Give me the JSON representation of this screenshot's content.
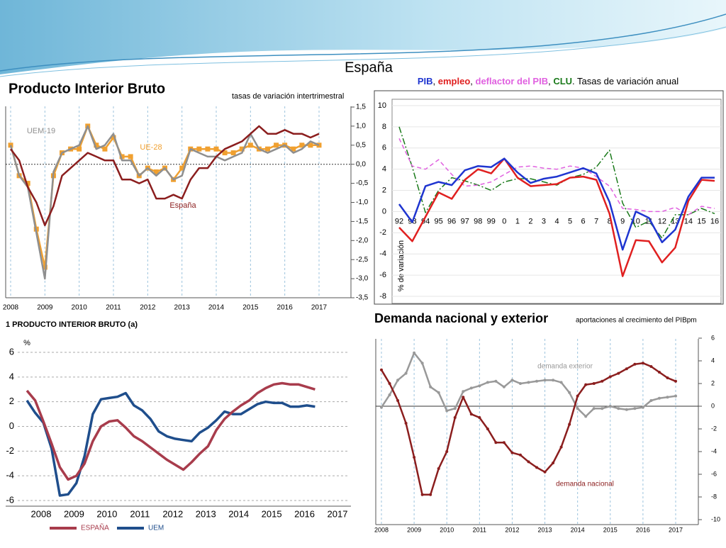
{
  "title": "España",
  "chart_data": [
    {
      "type": "line",
      "title": "Producto Interior Bruto",
      "subtitle": "tasas de variación intertrimestral",
      "categories": [
        "2008",
        null,
        null,
        null,
        "2009",
        null,
        null,
        null,
        "2010",
        null,
        null,
        null,
        "2011",
        null,
        null,
        null,
        "2012",
        null,
        null,
        null,
        "2013",
        null,
        null,
        null,
        "2014",
        null,
        null,
        null,
        "2015",
        null,
        null,
        null,
        "2016",
        null,
        null,
        null,
        "2017"
      ],
      "series": [
        {
          "name": "España",
          "color": "#8b1e1e",
          "values": [
            0.4,
            0.1,
            -0.6,
            -1.0,
            -1.6,
            -1.1,
            -0.3,
            -0.1,
            0.1,
            0.3,
            0.2,
            0.1,
            0.1,
            -0.4,
            -0.4,
            -0.5,
            -0.4,
            -0.9,
            -0.9,
            -0.8,
            -0.9,
            -0.4,
            -0.1,
            -0.1,
            0.2,
            0.4,
            0.5,
            0.6,
            0.8,
            1.0,
            0.8,
            0.8,
            0.9,
            0.8,
            0.8,
            0.7,
            0.8
          ]
        },
        {
          "name": "UEM-19",
          "color": "#8f8f8f",
          "values": [
            0.5,
            -0.3,
            -0.6,
            -1.8,
            -3.0,
            -0.2,
            0.3,
            0.4,
            0.5,
            1.0,
            0.4,
            0.5,
            0.8,
            0.1,
            0.1,
            -0.3,
            -0.1,
            -0.3,
            -0.1,
            -0.4,
            -0.3,
            0.4,
            0.3,
            0.2,
            0.2,
            0.1,
            0.2,
            0.3,
            0.8,
            0.4,
            0.3,
            0.4,
            0.5,
            0.3,
            0.4,
            0.6,
            0.5
          ]
        },
        {
          "name": "UE-28",
          "color": "#f0a030",
          "marker": "square",
          "values": [
            0.5,
            -0.3,
            -0.5,
            -1.7,
            -2.7,
            -0.3,
            0.3,
            0.4,
            0.4,
            1.0,
            0.5,
            0.4,
            0.7,
            0.2,
            0.2,
            -0.3,
            -0.1,
            -0.2,
            -0.1,
            -0.4,
            -0.1,
            0.4,
            0.4,
            0.4,
            0.4,
            0.3,
            0.3,
            0.4,
            0.5,
            0.4,
            0.4,
            0.5,
            0.5,
            0.4,
            0.5,
            0.5,
            0.5
          ]
        }
      ],
      "ylim": [
        -3.5,
        1.5
      ],
      "yticks": [
        {
          "value": 1.5,
          "label": "1,5"
        },
        {
          "value": 1.0,
          "label": "1,0"
        },
        {
          "value": 0.5,
          "label": "0,5"
        },
        {
          "value": 0,
          "label": "0,0"
        },
        {
          "value": -0.5,
          "label": "-0,5"
        },
        {
          "value": -1.0,
          "label": "-1,0"
        },
        {
          "value": -1.5,
          "label": "-1,5"
        },
        {
          "value": -2.0,
          "label": "-2,0"
        },
        {
          "value": -2.5,
          "label": "-2,5"
        },
        {
          "value": -3.0,
          "label": "-3,0"
        },
        {
          "value": -3.5,
          "label": "-3,5"
        }
      ],
      "grid": false
    },
    {
      "type": "line",
      "title_separators": [
        ", ",
        ", ",
        ", ",
        ". Tasas de variación anual"
      ],
      "y_label": "% de variación",
      "categories": [
        "92",
        "93",
        "94",
        "95",
        "96",
        "97",
        "98",
        "99",
        "0",
        "1",
        "2",
        "3",
        "4",
        "5",
        "6",
        "7",
        "8",
        "9",
        "10",
        "11",
        "12",
        "13",
        "14",
        "15",
        "16"
      ],
      "series": [
        {
          "name": "PIB",
          "color": "#1f35d0",
          "values": [
            0.7,
            -1.0,
            2.4,
            2.8,
            2.5,
            3.9,
            4.3,
            4.2,
            5.0,
            3.7,
            2.7,
            3.1,
            3.3,
            3.7,
            4.1,
            3.6,
            0.9,
            -3.6,
            0.0,
            -0.6,
            -2.9,
            -1.7,
            1.4,
            3.2,
            3.2
          ]
        },
        {
          "name": "empleo",
          "color": "#e02020",
          "values": [
            -1.5,
            -2.8,
            -0.5,
            1.8,
            1.2,
            3.0,
            4.0,
            3.6,
            5.0,
            3.2,
            2.4,
            2.5,
            2.6,
            3.2,
            3.3,
            3.0,
            -0.2,
            -6.1,
            -2.7,
            -2.8,
            -4.8,
            -3.4,
            1.0,
            3.0,
            2.9
          ]
        },
        {
          "name": "deflactor del PIB",
          "color": "#e060e0",
          "dash": "dashed",
          "values": [
            6.9,
            4.3,
            4.0,
            4.9,
            3.5,
            2.4,
            2.5,
            2.8,
            3.5,
            4.2,
            4.3,
            4.1,
            4.0,
            4.3,
            4.1,
            3.3,
            2.4,
            0.3,
            0.2,
            0.0,
            0.0,
            0.4,
            -0.3,
            0.5,
            0.3
          ]
        },
        {
          "name": "CLU",
          "color": "#1a7a1a",
          "dash": "dashdot",
          "values": [
            8.0,
            4.2,
            -0.1,
            2.0,
            3.2,
            2.9,
            2.5,
            2.0,
            2.8,
            3.1,
            3.1,
            2.8,
            2.5,
            3.2,
            3.5,
            4.2,
            5.8,
            0.8,
            -1.5,
            -0.9,
            -2.5,
            -0.3,
            -0.3,
            0.3,
            -0.2
          ]
        }
      ],
      "ylim": [
        -8,
        10
      ],
      "yticks": [
        -8,
        -6,
        -4,
        -2,
        0,
        2,
        4,
        6,
        8,
        10
      ],
      "grid": true
    },
    {
      "type": "line",
      "title": "1 PRODUCTO INTERIOR BRUTO (a)",
      "y_label": "%",
      "categories": [
        "2008",
        null,
        null,
        null,
        "2009",
        null,
        null,
        null,
        "2010",
        null,
        null,
        null,
        "2011",
        null,
        null,
        null,
        "2012",
        null,
        null,
        null,
        "2013",
        null,
        null,
        null,
        "2014",
        null,
        null,
        null,
        "2015",
        null,
        null,
        null,
        "2016",
        null,
        null,
        null,
        "2017"
      ],
      "series": [
        {
          "name": "ESPAÑA",
          "color": "#a83c4c",
          "values": [
            2.9,
            2.1,
            0.4,
            -1.4,
            -3.3,
            -4.3,
            -4.0,
            -3.0,
            -1.2,
            0.0,
            0.4,
            0.5,
            -0.1,
            -0.8,
            -1.2,
            -1.7,
            -2.2,
            -2.7,
            -3.1,
            -3.5,
            -2.9,
            -2.2,
            -1.6,
            -0.3,
            0.6,
            1.2,
            1.7,
            2.1,
            2.7,
            3.1,
            3.4,
            3.5,
            3.4,
            3.4,
            3.2,
            3.0,
            null
          ]
        },
        {
          "name": "UEM",
          "color": "#1f4e8c",
          "values": [
            2.1,
            1.1,
            0.3,
            -1.8,
            -5.6,
            -5.5,
            -4.6,
            -2.4,
            1.0,
            2.2,
            2.3,
            2.4,
            2.7,
            1.7,
            1.3,
            0.6,
            -0.4,
            -0.8,
            -1.0,
            -1.1,
            -1.2,
            -0.5,
            -0.1,
            0.5,
            1.2,
            1.0,
            1.0,
            1.4,
            1.8,
            2.0,
            1.9,
            1.9,
            1.6,
            1.6,
            1.7,
            1.6,
            null
          ]
        }
      ],
      "ylim": [
        -6,
        6
      ],
      "yticks": [
        -6,
        -4,
        -2,
        0,
        2,
        4,
        6
      ],
      "grid": true,
      "legend": "bottom"
    },
    {
      "type": "line",
      "title": "Demanda nacional y exterior",
      "subtitle": "aportaciones al crecimiento del PIBpm",
      "categories": [
        "2008",
        null,
        null,
        null,
        "2009",
        null,
        null,
        null,
        "2010",
        null,
        null,
        null,
        "2011",
        null,
        null,
        null,
        "2012",
        null,
        null,
        null,
        "2013",
        null,
        null,
        null,
        "2014",
        null,
        null,
        null,
        "2015",
        null,
        null,
        null,
        "2016",
        null,
        null,
        null,
        "2017"
      ],
      "series": [
        {
          "name": "demanda nacional",
          "color": "#8b1e1e",
          "marker": "circle",
          "values": [
            3.2,
            2.0,
            0.5,
            -1.5,
            -4.5,
            -7.8,
            -7.8,
            -5.5,
            -4.0,
            -1.0,
            0.8,
            -0.7,
            -1.0,
            -2.0,
            -3.2,
            -3.2,
            -4.1,
            -4.3,
            -4.9,
            -5.4,
            -5.8,
            -5.0,
            -3.6,
            -1.6,
            0.9,
            1.9,
            2.0,
            2.2,
            2.6,
            2.9,
            3.3,
            3.7,
            3.8,
            3.5,
            3.0,
            2.5,
            2.2
          ]
        },
        {
          "name": "demanda exterior",
          "color": "#999999",
          "marker": "circle",
          "values": [
            -0.1,
            1.0,
            2.3,
            2.9,
            4.7,
            3.8,
            1.7,
            1.2,
            -0.4,
            -0.2,
            1.3,
            1.6,
            1.8,
            2.1,
            2.2,
            1.7,
            2.3,
            2.0,
            2.1,
            2.2,
            2.3,
            2.3,
            2.1,
            1.2,
            -0.2,
            -0.9,
            -0.2,
            -0.2,
            0.0,
            -0.2,
            -0.3,
            -0.2,
            -0.1,
            0.5,
            0.7,
            0.8,
            0.9
          ]
        }
      ],
      "ylim": [
        -10,
        6
      ],
      "yticks": [
        -10,
        -8,
        -6,
        -4,
        -2,
        0,
        2,
        4,
        6
      ],
      "grid": false
    }
  ]
}
